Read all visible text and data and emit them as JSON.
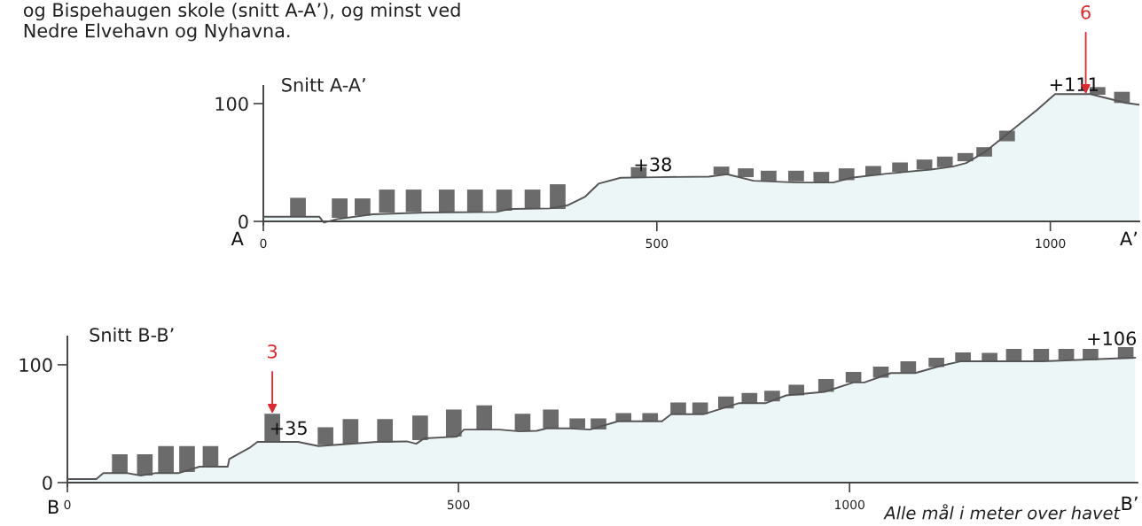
{
  "chart_data": [
    {
      "type": "area",
      "title": "Snitt A-A’",
      "xlim": [
        0,
        1113
      ],
      "ylim": [
        -3,
        115
      ],
      "xticks": [
        0,
        500,
        1000
      ],
      "yticks": [
        0,
        100
      ],
      "grid": false,
      "legend": false,
      "series": [
        {
          "color": "#edf6f6",
          "x": [
            0,
            71,
            77,
            94,
            139,
            206,
            296,
            313,
            364,
            386,
            409,
            426,
            454,
            499,
            566,
            589,
            623,
            679,
            724,
            747,
            792,
            848,
            876,
            893,
            916,
            983,
            1006,
            1051,
            1096,
            1113
          ],
          "values": [
            4,
            4,
            -1,
            2,
            6,
            7.5,
            8,
            10.5,
            11,
            13.5,
            21,
            32,
            37,
            37.5,
            38,
            40,
            34.5,
            33,
            33,
            37,
            40.5,
            44,
            46.5,
            49.5,
            58.5,
            94.5,
            108,
            108,
            100.5,
            99
          ]
        },
        {
          "type": "bar",
          "color": "#6b6b6b",
          "x": [
            44,
            97,
            126,
            157,
            191,
            233,
            269,
            306,
            342,
            374,
            477,
            582,
            613,
            642,
            677,
            709,
            741,
            775,
            809,
            840,
            866,
            892,
            916,
            945,
            1060,
            1091
          ],
          "base": [
            4,
            3,
            5,
            7.5,
            8,
            8,
            8,
            9,
            10.5,
            10.5,
            37,
            39.5,
            37.5,
            34,
            34,
            33,
            35,
            39,
            42,
            44,
            46,
            51,
            55,
            68,
            107.5,
            100.5
          ],
          "values": [
            16,
            16.5,
            14.5,
            19.5,
            19,
            19,
            19,
            18,
            16.5,
            21,
            9,
            7,
            7.5,
            9,
            9,
            9,
            10,
            8,
            8,
            8.5,
            9,
            7,
            8,
            9,
            6.5,
            9.5
          ]
        }
      ],
      "annotations": [
        "og Bispehaugen skole (snitt A-A’), og minst ved\nNedre Elvehavn og Nyhavna.",
        "+38",
        "+111",
        {
          "text": "6",
          "x": 1045,
          "y": 108
        },
        "A",
        "A’"
      ]
    },
    {
      "type": "area",
      "title": "Snitt B-B’",
      "xlim": [
        0,
        1368
      ],
      "ylim": [
        -3,
        124
      ],
      "xticks": [
        0,
        500,
        1000
      ],
      "yticks": [
        0,
        100
      ],
      "grid": false,
      "legend": false,
      "series": [
        {
          "color": "#edf6f6",
          "x": [
            0,
            37,
            46,
            77,
            94,
            112,
            142,
            169,
            205,
            207,
            234,
            243,
            295,
            321,
            396,
            434,
            446,
            456,
            498,
            507,
            552,
            578,
            600,
            613,
            643,
            668,
            704,
            760,
            772,
            813,
            859,
            893,
            919,
            968,
            1005,
            1019,
            1053,
            1084,
            1116,
            1143,
            1173,
            1247,
            1365
          ],
          "values": [
            3,
            3,
            8,
            8,
            6,
            8,
            8,
            13.5,
            13.5,
            20,
            30,
            34.5,
            34.5,
            31,
            34.5,
            35,
            33,
            37.5,
            39,
            45,
            45,
            43.5,
            44,
            46,
            46,
            45,
            52,
            52,
            58,
            58,
            67.5,
            67.5,
            74,
            77,
            85,
            85,
            93,
            93,
            99,
            103,
            103,
            103,
            106
          ]
        },
        {
          "type": "bar",
          "color": "#6b6b6b",
          "x": [
            67,
            99,
            126,
            153,
            183,
            262,
            330,
            362,
            406,
            451,
            494,
            533,
            582,
            618,
            652,
            679,
            711,
            745,
            781,
            809,
            842,
            872,
            901,
            932,
            970,
            1005,
            1040,
            1075,
            1111,
            1145,
            1179,
            1210,
            1245,
            1277,
            1308,
            1353
          ],
          "base": [
            8,
            6,
            8,
            9,
            13.5,
            34.5,
            32,
            33,
            34,
            36,
            39,
            45,
            44,
            46,
            46,
            45,
            52,
            52,
            58,
            58,
            63,
            67.5,
            69,
            74,
            77,
            85,
            89,
            93,
            98,
            103,
            103,
            103,
            103,
            104,
            104,
            105
          ],
          "values": [
            16,
            18,
            23,
            22,
            17.5,
            24,
            15,
            21,
            20,
            21,
            23,
            20.5,
            14.5,
            16,
            8.5,
            9.5,
            7,
            7,
            10,
            10,
            10,
            8.5,
            9,
            9,
            11,
            9,
            9.5,
            10,
            8,
            7.5,
            7,
            10.5,
            10.5,
            9.5,
            9.5,
            10
          ]
        }
      ],
      "annotations": [
        "+35",
        "+106",
        {
          "text": "3",
          "x": 262,
          "y": 58.5
        },
        "B",
        "B’",
        "Alle mål i meter over havet"
      ]
    }
  ]
}
